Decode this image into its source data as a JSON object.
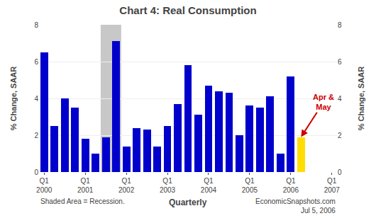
{
  "chart_data": {
    "type": "bar",
    "title": "Chart 4: Real Consumption",
    "ylabel": "% Change, SAAR",
    "y2label": "% Change, SAAR",
    "xlabel": "Quarterly",
    "footer_left": "Shaded Area = Recession.",
    "footer_right": "EconomicSnapshots.com\nJul 5, 2006",
    "categories": [
      "Q1\n2000",
      null,
      null,
      null,
      "Q1\n2001",
      null,
      null,
      null,
      "Q1\n2002",
      null,
      null,
      null,
      "Q1\n2003",
      null,
      null,
      null,
      "Q1\n2004",
      null,
      null,
      null,
      "Q1\n2005",
      null,
      null,
      null,
      "Q1\n2006",
      null,
      null,
      null,
      "Q1\n2007"
    ],
    "values": [
      6.5,
      2.5,
      4.0,
      3.5,
      1.8,
      1.0,
      1.9,
      7.1,
      1.4,
      2.4,
      2.3,
      1.4,
      2.5,
      3.7,
      5.8,
      3.1,
      4.7,
      4.4,
      4.3,
      2.0,
      3.6,
      3.5,
      4.1,
      1.0,
      5.2,
      1.9,
      null,
      null,
      null
    ],
    "colors": [
      "#0000cc",
      "#0000cc",
      "#0000cc",
      "#0000cc",
      "#0000cc",
      "#0000cc",
      "#0000cc",
      "#0000cc",
      "#0000cc",
      "#0000cc",
      "#0000cc",
      "#0000cc",
      "#0000cc",
      "#0000cc",
      "#0000cc",
      "#0000cc",
      "#0000cc",
      "#0000cc",
      "#0000cc",
      "#0000cc",
      "#0000cc",
      "#0000cc",
      "#0000cc",
      "#0000cc",
      "#0000cc",
      "#ffdd00",
      null,
      null,
      null
    ],
    "shaded": [
      5.5,
      7.5
    ],
    "annotations": [
      {
        "text": "Apr &\nMay",
        "color": "#cc0000",
        "x": 25,
        "y": 1.9,
        "text_x": 27.2,
        "text_y": 3.8
      }
    ],
    "ylim": [
      0,
      8
    ],
    "yticks": [
      0,
      2,
      4,
      6,
      8
    ],
    "y2lim": [
      0,
      8
    ],
    "y2ticks": [
      0,
      2,
      4,
      6,
      8
    ],
    "grid": true
  }
}
